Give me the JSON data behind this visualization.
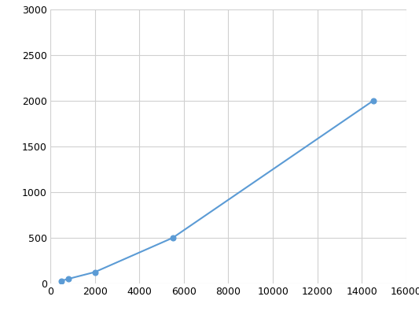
{
  "x": [
    500,
    800,
    2000,
    5500,
    14500
  ],
  "y": [
    30,
    50,
    125,
    500,
    2000
  ],
  "line_color": "#5b9bd5",
  "marker_style": "o",
  "marker_size": 5,
  "marker_facecolor": "#5b9bd5",
  "marker_edgecolor": "#5b9bd5",
  "xlim": [
    0,
    16000
  ],
  "ylim": [
    0,
    3000
  ],
  "xticks": [
    0,
    2000,
    4000,
    6000,
    8000,
    10000,
    12000,
    14000,
    16000
  ],
  "yticks": [
    0,
    500,
    1000,
    1500,
    2000,
    2500,
    3000
  ],
  "grid_color": "#d0d0d0",
  "background_color": "#ffffff",
  "tick_labelsize": 9
}
